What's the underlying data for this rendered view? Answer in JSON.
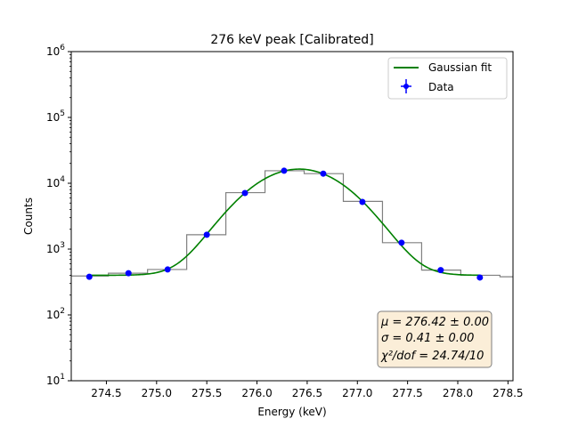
{
  "chart_data": {
    "type": "line",
    "title": "276 keV peak [Calibrated]",
    "xlabel": "Energy (keV)",
    "ylabel": "Counts",
    "xlim": [
      274.15,
      278.55
    ],
    "ylim": [
      10,
      1000000
    ],
    "yscale": "log",
    "x_ticks": [
      274.5,
      275.0,
      275.5,
      276.0,
      276.5,
      277.0,
      277.5,
      278.0,
      278.5
    ],
    "x_tick_labels": [
      "274.5",
      "275.0",
      "275.5",
      "276.0",
      "276.5",
      "277.0",
      "277.5",
      "278.0",
      "278.5"
    ],
    "y_ticks": [
      10,
      100,
      1000,
      10000,
      100000,
      1000000
    ],
    "y_tick_labels": [
      {
        "base": "10",
        "exp": "1"
      },
      {
        "base": "10",
        "exp": "2"
      },
      {
        "base": "10",
        "exp": "3"
      },
      {
        "base": "10",
        "exp": "4"
      },
      {
        "base": "10",
        "exp": "5"
      },
      {
        "base": "10",
        "exp": "6"
      }
    ],
    "grid": false,
    "legend_position": "top-right",
    "histogram": {
      "color": "#808080",
      "edges": [
        274.14,
        274.52,
        274.91,
        275.3,
        275.69,
        276.08,
        276.47,
        276.86,
        277.25,
        277.64,
        278.03,
        278.42,
        278.55
      ],
      "counts": [
        390,
        430,
        490,
        1650,
        7200,
        15500,
        14000,
        5300,
        1250,
        480,
        400,
        380
      ]
    },
    "series": [
      {
        "name": "Gaussian fit",
        "kind": "fit",
        "color": "#008000",
        "model": {
          "mu": 276.42,
          "sigma": 0.41,
          "amplitude": 16000,
          "background": 400
        },
        "x_range": [
          274.33,
          278.22
        ]
      },
      {
        "name": "Data",
        "kind": "points",
        "color": "#0000ff",
        "x": [
          274.33,
          274.72,
          275.11,
          275.5,
          275.88,
          276.27,
          276.66,
          277.05,
          277.44,
          277.83,
          278.22
        ],
        "y": [
          380,
          430,
          490,
          1650,
          7100,
          15500,
          14000,
          5200,
          1250,
          480,
          370
        ]
      }
    ],
    "stats_box": {
      "lines": [
        "μ = 276.42 ± 0.00",
        "σ = 0.41 ± 0.00",
        "χ²/dof = 24.74/10"
      ],
      "fill": "#fbeed8"
    }
  }
}
